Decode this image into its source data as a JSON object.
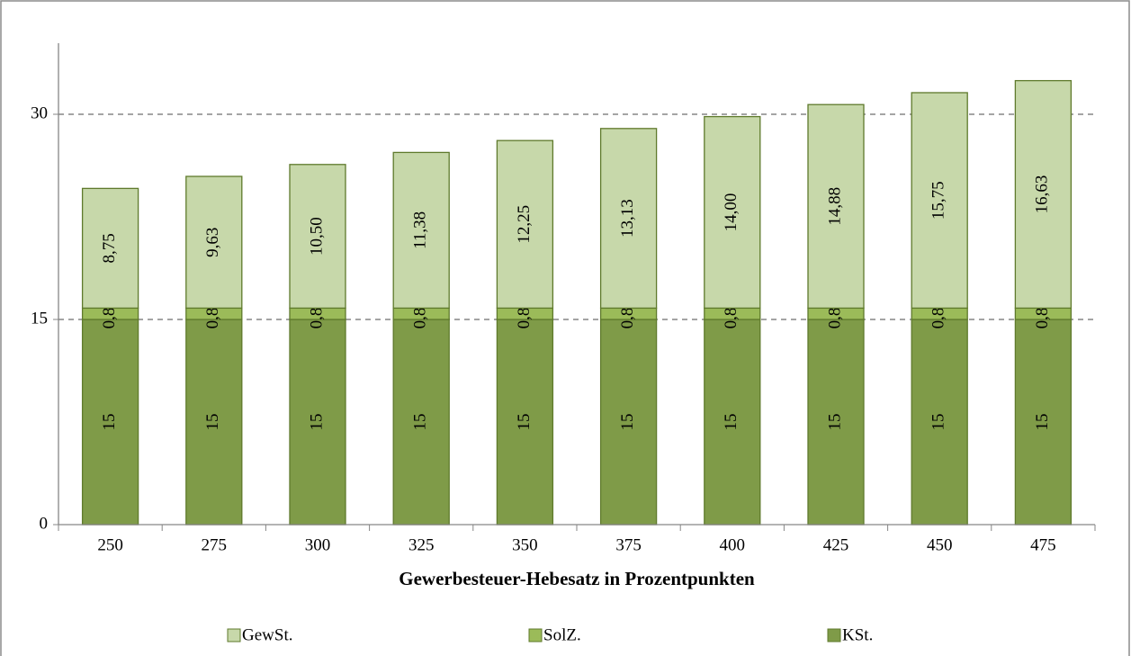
{
  "chart_data": {
    "type": "stacked_bar",
    "x_label": "Gewerbesteuer-Hebesatz in Prozentpunkten",
    "categories": [
      "250",
      "275",
      "300",
      "325",
      "350",
      "375",
      "400",
      "425",
      "450",
      "475"
    ],
    "series": [
      {
        "name": "KSt.",
        "color": "#7f9b48",
        "values": [
          15,
          15,
          15,
          15,
          15,
          15,
          15,
          15,
          15,
          15
        ]
      },
      {
        "name": "SolZ.",
        "color": "#9bbb59",
        "values": [
          0.83,
          0.83,
          0.83,
          0.83,
          0.83,
          0.83,
          0.83,
          0.83,
          0.83,
          0.83
        ],
        "value_labels": [
          "0,83",
          "0,83",
          "0,83",
          "0,83",
          "0,83",
          "0,83",
          "0,83",
          "0,83",
          "0,83",
          "0,83"
        ]
      },
      {
        "name": "GewSt.",
        "color": "#c7d8aa",
        "values": [
          8.75,
          9.63,
          10.5,
          11.38,
          12.25,
          13.13,
          14.0,
          14.88,
          15.75,
          16.63
        ],
        "value_labels": [
          "8,75",
          "9,63",
          "10,50",
          "11,38",
          "12,25",
          "13,13",
          "14,00",
          "14,88",
          "15,75",
          "16,63"
        ]
      }
    ],
    "ylim": [
      0,
      35
    ],
    "yticks": [
      0,
      15,
      30
    ],
    "grid": true,
    "legend": "bottom"
  }
}
